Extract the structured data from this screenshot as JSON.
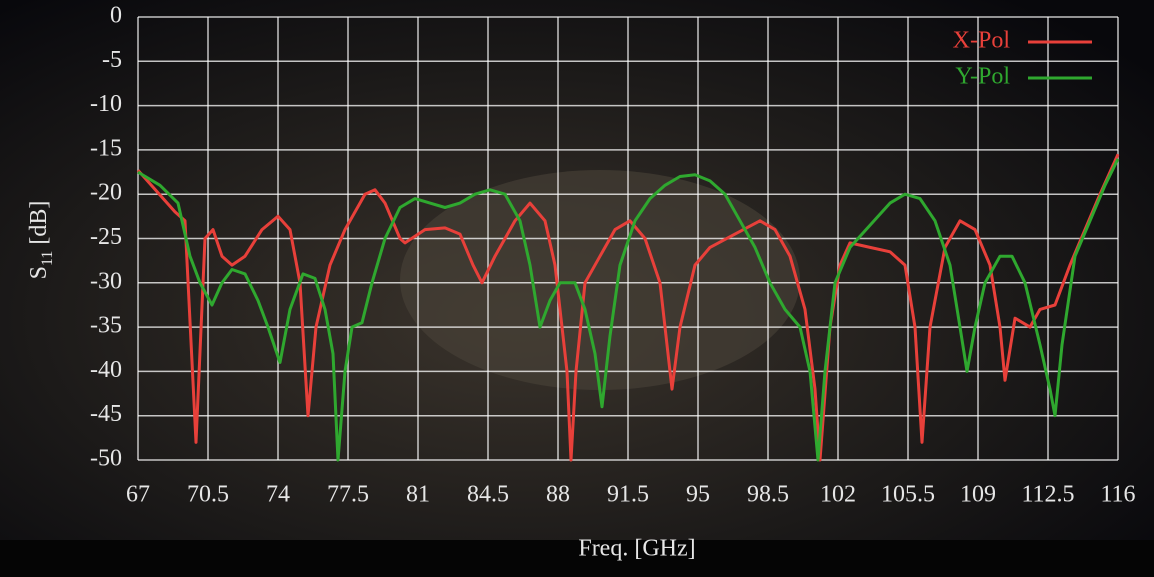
{
  "chart_data": {
    "type": "line",
    "x_label": "Freq. [GHz]",
    "y_label_base": "S",
    "y_label_subscript": "11",
    "y_label_unit": "[dB]",
    "xlim": [
      67,
      116
    ],
    "ylim": [
      -50,
      0
    ],
    "xticks": [
      67,
      70.5,
      74,
      77.5,
      81,
      84.5,
      88,
      91.5,
      95,
      98.5,
      102,
      105.5,
      109,
      112.5,
      116
    ],
    "yticks": [
      0,
      -5,
      -10,
      -15,
      -20,
      -25,
      -30,
      -35,
      -40,
      -45,
      -50
    ],
    "grid": true,
    "legend": "upper right",
    "series": [
      {
        "name": "X-Pol",
        "color": "#e8403a",
        "x": [
          67,
          68.85,
          69.35,
          69.9,
          70.35,
          70.75,
          71.2,
          71.7,
          72.35,
          73.2,
          74,
          74.6,
          75.1,
          75.5,
          75.9,
          76.6,
          77.35,
          78.35,
          78.85,
          79.35,
          80.1,
          80.35,
          81.35,
          82.35,
          83.1,
          83.75,
          84.2,
          84.85,
          85.85,
          86.6,
          87.35,
          87.85,
          88.2,
          88.45,
          88.65,
          88.9,
          89.35,
          90.1,
          90.85,
          91.6,
          92.35,
          93.1,
          93.7,
          94.1,
          94.85,
          95.6,
          96.85,
          98.1,
          98.85,
          99.6,
          100.35,
          100.85,
          101.1,
          101.6,
          102.1,
          102.6,
          103.6,
          104.6,
          105.35,
          105.85,
          106.2,
          106.6,
          107.35,
          108.1,
          108.85,
          109.6,
          110.1,
          110.35,
          110.85,
          111.6,
          112.1,
          112.85,
          113.6,
          114.35,
          115.1,
          116
        ],
        "values": [
          -17.3,
          -22,
          -23,
          -48,
          -25,
          -24,
          -27,
          -28,
          -27,
          -24,
          -22.5,
          -24,
          -30,
          -45,
          -35,
          -28,
          -24,
          -20,
          -19.5,
          -21,
          -25,
          -25.5,
          -24,
          -23.8,
          -24.5,
          -28,
          -30,
          -27,
          -23,
          -21,
          -23,
          -28,
          -35,
          -40,
          -50,
          -40,
          -30,
          -27,
          -24,
          -23,
          -25,
          -30,
          -42,
          -35,
          -28,
          -26,
          -24.5,
          -23,
          -24,
          -27,
          -33,
          -42,
          -50,
          -35,
          -28,
          -25.5,
          -26,
          -26.5,
          -28,
          -35,
          -48,
          -35,
          -26,
          -23,
          -24,
          -28,
          -35,
          -41,
          -34,
          -35,
          -33,
          -32.5,
          -28,
          -24,
          -20,
          -15.5
        ]
      },
      {
        "name": "Y-Pol",
        "color": "#2fa82f",
        "x": [
          67,
          68.1,
          69,
          69.6,
          70.1,
          70.7,
          71.2,
          71.7,
          72.35,
          73,
          73.5,
          74.1,
          74.6,
          75.25,
          75.85,
          76.35,
          76.75,
          77,
          77.35,
          77.7,
          78.2,
          78.7,
          79.35,
          80.1,
          80.85,
          81.6,
          82.35,
          83.1,
          83.85,
          84.6,
          85.35,
          86.1,
          86.6,
          87.1,
          87.6,
          88.1,
          88.85,
          89.35,
          89.85,
          90.2,
          90.6,
          91.1,
          91.85,
          92.6,
          93.35,
          94.1,
          94.85,
          95.6,
          96.35,
          97.1,
          97.85,
          98.6,
          99.35,
          100.1,
          100.6,
          101,
          101.35,
          101.85,
          102.6,
          103.6,
          104.6,
          105.35,
          106.1,
          106.85,
          107.6,
          108.1,
          108.45,
          108.85,
          109.35,
          110.1,
          110.7,
          111.35,
          112.1,
          112.6,
          112.85,
          113.2,
          113.85,
          114.6,
          115.35,
          116
        ],
        "values": [
          -17.5,
          -19,
          -21,
          -27,
          -30,
          -32.5,
          -30,
          -28.5,
          -29,
          -32,
          -35,
          -39,
          -33,
          -29,
          -29.5,
          -33,
          -38,
          -50,
          -40,
          -35,
          -34.5,
          -30,
          -25,
          -21.5,
          -20.5,
          -21,
          -21.5,
          -21,
          -20,
          -19.5,
          -20,
          -23,
          -28,
          -35,
          -32,
          -30,
          -30,
          -33,
          -38,
          -44,
          -36,
          -28,
          -23,
          -20.5,
          -19,
          -18,
          -17.8,
          -18.5,
          -20,
          -23,
          -26,
          -30,
          -33,
          -35,
          -40,
          -50,
          -40,
          -30,
          -26,
          -23.5,
          -21,
          -20,
          -20.5,
          -23,
          -28,
          -35,
          -40,
          -35,
          -30,
          -27,
          -27,
          -30,
          -37,
          -42,
          -45,
          -37,
          -27,
          -23,
          -19,
          -16
        ]
      }
    ]
  }
}
